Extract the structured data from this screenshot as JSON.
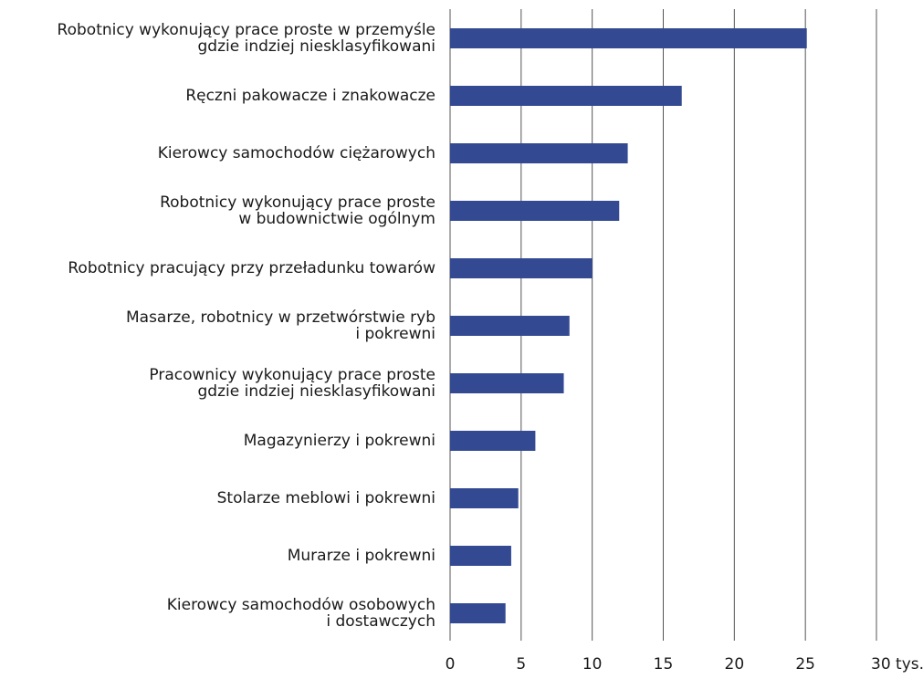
{
  "chart_data": {
    "type": "bar",
    "orientation": "horizontal",
    "categories": [
      "Robotnicy wykonujący prace proste w przemyśle\ngdzie indziej niesklasyfikowani",
      "Ręczni pakowacze i znakowacze",
      "Kierowcy samochodów ciężarowych",
      "Robotnicy wykonujący prace proste\nw budownictwie ogólnym",
      "Robotnicy pracujący przy przeładunku towarów",
      "Masarze, robotnicy w przetwórstwie ryb\ni pokrewni",
      "Pracownicy wykonujący prace proste\ngdzie indziej niesklasyfikowani",
      "Magazynierzy i pokrewni",
      "Stolarze meblowi i pokrewni",
      "Murarze i pokrewni",
      "Kierowcy samochodów osobowych\ni dostawczych"
    ],
    "values": [
      25.1,
      16.3,
      12.5,
      11.9,
      10.0,
      8.4,
      8.0,
      6.0,
      4.8,
      4.3,
      3.9
    ],
    "color": "#334a93",
    "xlim": [
      0,
      30
    ],
    "xticks": [
      0,
      5,
      10,
      15,
      20,
      25,
      {
        "value": 30,
        "label": "30 tys."
      }
    ],
    "grid": true
  }
}
